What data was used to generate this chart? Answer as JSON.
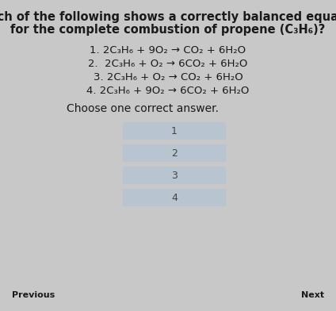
{
  "title_line1": "Which of the following shows a correctly balanced equation",
  "title_line2": "for the complete combustion of propene (C₃H₆)?",
  "options": [
    "1. 2C₃H₆ + 9O₂ → CO₂ + 6H₂O",
    "2.  2C₃H₆ + O₂ → 6CO₂ + 6H₂O",
    "3. 2C₃H₆ + O₂ → CO₂ + 6H₂O",
    "4. 2C₃H₆ + 9O₂ → 6CO₂ + 6H₂O"
  ],
  "choose_text": "Choose one correct answer.",
  "button_labels": [
    "1",
    "2",
    "3",
    "4"
  ],
  "button_color": "#b8c4d0",
  "button_text_color": "#444444",
  "bg_color": "#c8c8c8",
  "text_color": "#1a1a1a",
  "nav_left": "Previous",
  "nav_right": "Next",
  "options_fontsize": 9.5,
  "title_fontsize": 10.5,
  "choose_fontsize": 10,
  "nav_fontsize": 8
}
